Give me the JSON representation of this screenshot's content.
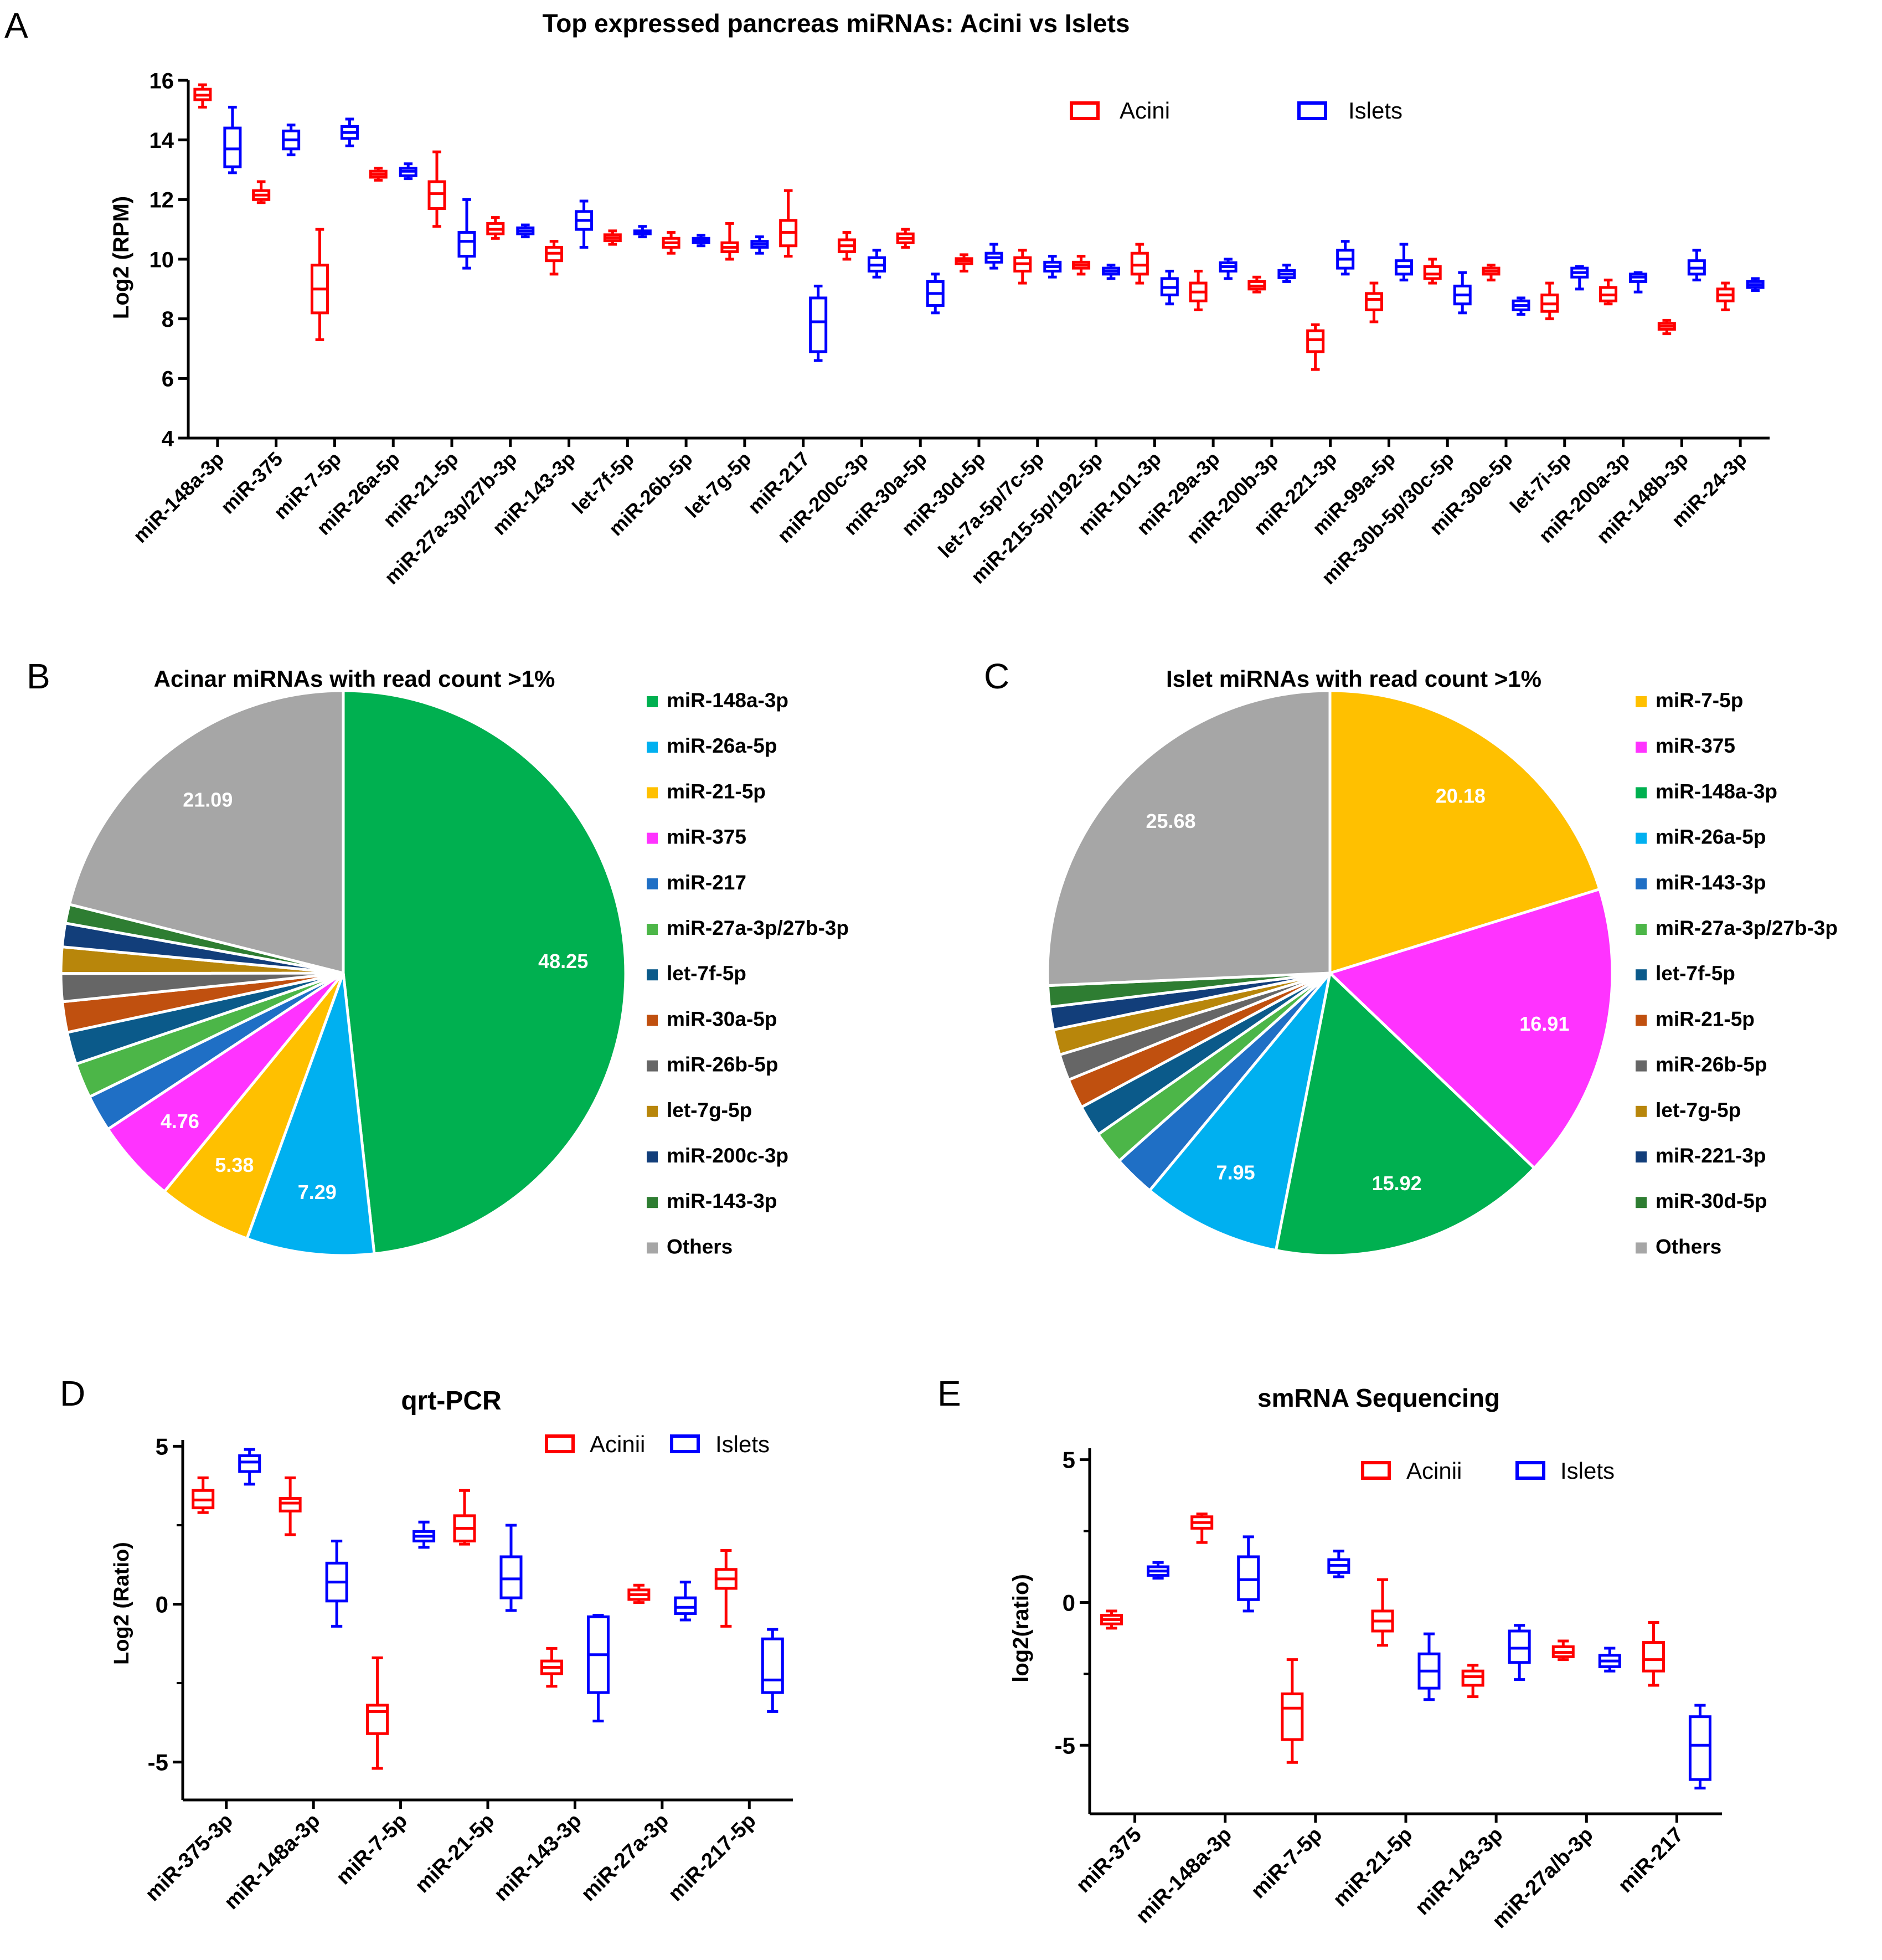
{
  "colors": {
    "acini": "#FF0000",
    "islets": "#0000FF",
    "axis": "#000000"
  },
  "panel_labels": {
    "a": "A",
    "b": "B",
    "c": "C",
    "d": "D",
    "e": "E"
  },
  "chart_data": [
    {
      "id": "A",
      "type": "box",
      "title": "Top expressed pancreas miRNAs: Acini vs Islets",
      "xlabel": "",
      "ylabel": "Log2 (RPM)",
      "ylim": [
        4,
        16
      ],
      "yticks": [
        4,
        6,
        8,
        10,
        12,
        14,
        16
      ],
      "legend": [
        "Acini",
        "Islets"
      ],
      "legend_position": "top-right",
      "categories": [
        "miR-148a-3p",
        "miR-375",
        "miR-7-5p",
        "miR-26a-5p",
        "miR-21-5p",
        "miR-27a-3p/27b-3p",
        "miR-143-3p",
        "let-7f-5p",
        "miR-26b-5p",
        "let-7g-5p",
        "miR-217",
        "miR-200c-3p",
        "miR-30a-5p",
        "miR-30d-5p",
        "let-7a-5p/7c-5p",
        "miR-215-5p/192-5p",
        "miR-101-3p",
        "miR-29a-3p",
        "miR-200b-3p",
        "miR-221-3p",
        "miR-99a-5p",
        "miR-30b-5p/30c-5p",
        "miR-30e-5p",
        "let-7i-5p",
        "miR-200a-3p",
        "miR-148b-3p",
        "miR-24-3p"
      ],
      "series": [
        {
          "name": "Acini",
          "boxes": [
            [
              15.1,
              15.35,
              15.5,
              15.7,
              15.85
            ],
            [
              11.9,
              12.0,
              12.15,
              12.3,
              12.6
            ],
            [
              7.3,
              8.2,
              9.0,
              9.8,
              11.0
            ],
            [
              12.65,
              12.75,
              12.85,
              12.95,
              13.05
            ],
            [
              11.1,
              11.7,
              12.2,
              12.6,
              13.6
            ],
            [
              10.7,
              10.85,
              11.0,
              11.2,
              11.4
            ],
            [
              9.5,
              9.95,
              10.2,
              10.4,
              10.6
            ],
            [
              10.5,
              10.62,
              10.72,
              10.82,
              10.95
            ],
            [
              10.2,
              10.4,
              10.55,
              10.7,
              10.9
            ],
            [
              10.0,
              10.25,
              10.4,
              10.55,
              11.2
            ],
            [
              10.1,
              10.45,
              10.9,
              11.3,
              12.3
            ],
            [
              10.0,
              10.25,
              10.45,
              10.65,
              10.9
            ],
            [
              10.4,
              10.55,
              10.7,
              10.85,
              11.0
            ],
            [
              9.6,
              9.85,
              9.95,
              10.02,
              10.15
            ],
            [
              9.2,
              9.6,
              9.85,
              10.05,
              10.3
            ],
            [
              9.5,
              9.7,
              9.8,
              9.9,
              10.1
            ],
            [
              9.2,
              9.5,
              9.8,
              10.2,
              10.5
            ],
            [
              8.3,
              8.6,
              8.9,
              9.2,
              9.6
            ],
            [
              8.9,
              9.0,
              9.1,
              9.25,
              9.4
            ],
            [
              6.3,
              6.9,
              7.3,
              7.6,
              7.8
            ],
            [
              7.9,
              8.3,
              8.65,
              8.85,
              9.2
            ],
            [
              9.2,
              9.35,
              9.5,
              9.75,
              10.0
            ],
            [
              9.3,
              9.5,
              9.6,
              9.7,
              9.8
            ],
            [
              8.0,
              8.25,
              8.5,
              8.8,
              9.2
            ],
            [
              8.5,
              8.6,
              8.8,
              9.05,
              9.3
            ],
            [
              7.5,
              7.65,
              7.75,
              7.85,
              7.95
            ],
            [
              8.3,
              8.6,
              8.8,
              9.0,
              9.2
            ]
          ]
        },
        {
          "name": "Islets",
          "boxes": [
            [
              12.9,
              13.1,
              13.7,
              14.4,
              15.1
            ],
            [
              13.5,
              13.7,
              14.0,
              14.3,
              14.5
            ],
            [
              13.8,
              14.05,
              14.25,
              14.45,
              14.7
            ],
            [
              12.7,
              12.8,
              12.95,
              13.05,
              13.2
            ],
            [
              9.7,
              10.1,
              10.6,
              10.9,
              12.0
            ],
            [
              10.75,
              10.85,
              10.95,
              11.05,
              11.15
            ],
            [
              10.4,
              11.0,
              11.3,
              11.6,
              11.95
            ],
            [
              10.75,
              10.85,
              10.9,
              10.95,
              11.1
            ],
            [
              10.45,
              10.55,
              10.62,
              10.7,
              10.8
            ],
            [
              10.2,
              10.4,
              10.5,
              10.6,
              10.75
            ],
            [
              6.6,
              6.9,
              7.9,
              8.7,
              9.1
            ],
            [
              9.4,
              9.6,
              9.8,
              10.05,
              10.3
            ],
            [
              8.2,
              8.45,
              8.85,
              9.25,
              9.5
            ],
            [
              9.7,
              9.9,
              10.05,
              10.2,
              10.5
            ],
            [
              9.4,
              9.6,
              9.75,
              9.9,
              10.1
            ],
            [
              9.35,
              9.5,
              9.6,
              9.7,
              9.8
            ],
            [
              8.5,
              8.8,
              9.05,
              9.35,
              9.6
            ],
            [
              9.35,
              9.6,
              9.75,
              9.88,
              10.0
            ],
            [
              9.25,
              9.38,
              9.5,
              9.62,
              9.8
            ],
            [
              9.5,
              9.7,
              10.0,
              10.3,
              10.6
            ],
            [
              9.3,
              9.5,
              9.75,
              9.95,
              10.5
            ],
            [
              8.2,
              8.5,
              8.8,
              9.1,
              9.55
            ],
            [
              8.15,
              8.3,
              8.45,
              8.6,
              8.7
            ],
            [
              9.0,
              9.4,
              9.55,
              9.7,
              9.75
            ],
            [
              8.9,
              9.25,
              9.4,
              9.5,
              9.55
            ],
            [
              9.3,
              9.5,
              9.7,
              9.95,
              10.3
            ],
            [
              8.95,
              9.05,
              9.15,
              9.25,
              9.35
            ]
          ]
        }
      ]
    },
    {
      "id": "B",
      "type": "pie",
      "title": "Acinar miRNAs with read count >1%",
      "legend_position": "right",
      "slices": [
        {
          "label": "miR-148a-3p",
          "value": 48.25,
          "color": "#00B050",
          "shown": "48.25"
        },
        {
          "label": "miR-26a-5p",
          "value": 7.29,
          "color": "#00B0F0",
          "shown": "7.29"
        },
        {
          "label": "miR-21-5p",
          "value": 5.38,
          "color": "#FFC000",
          "shown": "5.38"
        },
        {
          "label": "miR-375",
          "value": 4.76,
          "color": "#FF33FF",
          "shown": "4.76"
        },
        {
          "label": "miR-217",
          "value": 2.1,
          "color": "#1F6FC5",
          "shown": ""
        },
        {
          "label": "miR-27a-3p/27b-3p",
          "value": 2.0,
          "color": "#4CB648",
          "shown": ""
        },
        {
          "label": "let-7f-5p",
          "value": 1.85,
          "color": "#0B5A8A",
          "shown": ""
        },
        {
          "label": "miR-30a-5p",
          "value": 1.75,
          "color": "#C0500F",
          "shown": ""
        },
        {
          "label": "miR-26b-5p",
          "value": 1.6,
          "color": "#666666",
          "shown": ""
        },
        {
          "label": "let-7g-5p",
          "value": 1.5,
          "color": "#B8860B",
          "shown": ""
        },
        {
          "label": "miR-200c-3p",
          "value": 1.35,
          "color": "#123E7A",
          "shown": ""
        },
        {
          "label": "miR-143-3p",
          "value": 1.08,
          "color": "#2E7D32",
          "shown": ""
        },
        {
          "label": "Others",
          "value": 21.09,
          "color": "#A6A6A6",
          "shown": "21.09"
        }
      ]
    },
    {
      "id": "C",
      "type": "pie",
      "title": "Islet miRNAs with read count >1%",
      "legend_position": "right",
      "slices": [
        {
          "label": "miR-7-5p",
          "value": 20.18,
          "color": "#FFC000",
          "shown": "20.18"
        },
        {
          "label": "miR-375",
          "value": 16.91,
          "color": "#FF33FF",
          "shown": "16.91"
        },
        {
          "label": "miR-148a-3p",
          "value": 15.92,
          "color": "#00B050",
          "shown": "15.92"
        },
        {
          "label": "miR-26a-5p",
          "value": 7.95,
          "color": "#00B0F0",
          "shown": "7.95"
        },
        {
          "label": "miR-143-3p",
          "value": 2.4,
          "color": "#1F6FC5",
          "shown": ""
        },
        {
          "label": "miR-27a-3p/27b-3p",
          "value": 1.9,
          "color": "#4CB648",
          "shown": ""
        },
        {
          "label": "let-7f-5p",
          "value": 1.8,
          "color": "#0B5A8A",
          "shown": ""
        },
        {
          "label": "miR-21-5p",
          "value": 1.7,
          "color": "#C0500F",
          "shown": ""
        },
        {
          "label": "miR-26b-5p",
          "value": 1.5,
          "color": "#666666",
          "shown": ""
        },
        {
          "label": "let-7g-5p",
          "value": 1.45,
          "color": "#B8860B",
          "shown": ""
        },
        {
          "label": "miR-221-3p",
          "value": 1.3,
          "color": "#123E7A",
          "shown": ""
        },
        {
          "label": "miR-30d-5p",
          "value": 1.21,
          "color": "#2E7D32",
          "shown": ""
        },
        {
          "label": "Others",
          "value": 25.68,
          "color": "#A6A6A6",
          "shown": "25.68"
        }
      ]
    },
    {
      "id": "D",
      "type": "box",
      "title": "qrt-PCR",
      "xlabel": "",
      "ylabel": "Log2 (Ratio)",
      "ylim": [
        -6.2,
        5.2
      ],
      "yticks": [
        -5,
        0,
        5
      ],
      "minor_yticks": [
        -2.5,
        2.5
      ],
      "legend": [
        "Acinii",
        "Islets"
      ],
      "legend_position": "top-right",
      "categories": [
        "miR-375-3p",
        "miR-148a-3p",
        "miR-7-5p",
        "miR-21-5p",
        "miR-143-3p",
        "miR-27a-3p",
        "miR-217-5p"
      ],
      "series": [
        {
          "name": "Acinii",
          "boxes": [
            [
              2.9,
              3.05,
              3.3,
              3.6,
              4.0
            ],
            [
              2.2,
              2.95,
              3.2,
              3.35,
              4.0
            ],
            [
              -5.2,
              -4.1,
              -3.4,
              -3.2,
              -1.7
            ],
            [
              1.9,
              2.0,
              2.4,
              2.8,
              3.6
            ],
            [
              -2.6,
              -2.2,
              -2.0,
              -1.8,
              -1.4
            ],
            [
              0.05,
              0.15,
              0.3,
              0.45,
              0.6
            ],
            [
              -0.7,
              0.5,
              0.8,
              1.1,
              1.7
            ]
          ]
        },
        {
          "name": "Islets",
          "boxes": [
            [
              3.8,
              4.2,
              4.5,
              4.7,
              4.9
            ],
            [
              -0.7,
              0.1,
              0.7,
              1.3,
              2.0
            ],
            [
              1.8,
              2.0,
              2.15,
              2.3,
              2.6
            ],
            [
              -0.2,
              0.2,
              0.8,
              1.5,
              2.5
            ],
            [
              -3.7,
              -2.8,
              -1.6,
              -0.4,
              -0.35
            ],
            [
              -0.5,
              -0.3,
              -0.1,
              0.2,
              0.7
            ],
            [
              -3.4,
              -2.8,
              -2.4,
              -1.1,
              -0.8
            ]
          ]
        }
      ]
    },
    {
      "id": "E",
      "type": "box",
      "title": "smRNA Sequencing",
      "xlabel": "",
      "ylabel": "log2(ratio)",
      "ylim": [
        -7.4,
        5.4
      ],
      "yticks": [
        -5,
        0,
        5
      ],
      "minor_yticks": [
        -2.5,
        2.5
      ],
      "legend": [
        "Acinii",
        "Islets"
      ],
      "legend_position": "top-right",
      "categories": [
        "miR-375",
        "miR-148a-3p",
        "miR-7-5p",
        "miR-21-5p",
        "miR-143-3p",
        "miR-27a/b-3p",
        "miR-217"
      ],
      "series": [
        {
          "name": "Acinii",
          "boxes": [
            [
              -0.9,
              -0.75,
              -0.6,
              -0.45,
              -0.3
            ],
            [
              2.1,
              2.6,
              2.8,
              3.0,
              3.1
            ],
            [
              -5.6,
              -4.8,
              -3.7,
              -3.2,
              -2.0
            ],
            [
              -1.5,
              -1.0,
              -0.65,
              -0.3,
              0.8
            ],
            [
              -3.3,
              -2.9,
              -2.6,
              -2.4,
              -2.2
            ],
            [
              -2.0,
              -1.9,
              -1.75,
              -1.55,
              -1.35
            ],
            [
              -2.9,
              -2.4,
              -2.0,
              -1.4,
              -0.7
            ]
          ]
        },
        {
          "name": "Islets",
          "boxes": [
            [
              0.85,
              0.95,
              1.1,
              1.25,
              1.4
            ],
            [
              -0.3,
              0.1,
              0.8,
              1.6,
              2.3
            ],
            [
              0.9,
              1.05,
              1.3,
              1.5,
              1.8
            ],
            [
              -3.4,
              -3.0,
              -2.4,
              -1.8,
              -1.1
            ],
            [
              -2.7,
              -2.1,
              -1.6,
              -1.0,
              -0.8
            ],
            [
              -2.4,
              -2.25,
              -2.05,
              -1.85,
              -1.6
            ],
            [
              -6.5,
              -6.2,
              -5.0,
              -4.0,
              -3.6
            ]
          ]
        }
      ]
    }
  ]
}
